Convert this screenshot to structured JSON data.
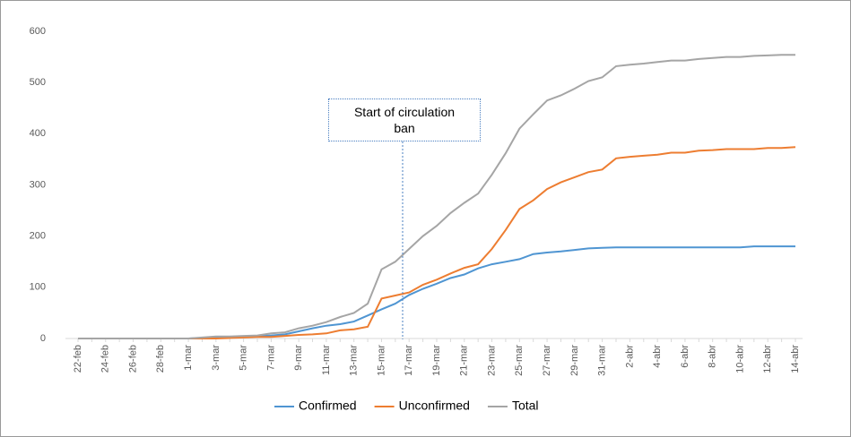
{
  "chart_data": {
    "type": "line",
    "categories": [
      "22-feb",
      null,
      "24-feb",
      null,
      "26-feb",
      null,
      "28-feb",
      null,
      "1-mar",
      null,
      "3-mar",
      null,
      "5-mar",
      null,
      "7-mar",
      null,
      "9-mar",
      null,
      "11-mar",
      null,
      "13-mar",
      null,
      "15-mar",
      null,
      "17-mar",
      null,
      "19-mar",
      null,
      "21-mar",
      null,
      "23-mar",
      null,
      "25-mar",
      null,
      "27-mar",
      null,
      "29-mar",
      null,
      "31-mar",
      null,
      "2-abr",
      null,
      "4-abr",
      null,
      "6-abr",
      null,
      "8-abr",
      null,
      "10-abr",
      null,
      "12-abr",
      null,
      "14-abr"
    ],
    "series": [
      {
        "name": "Confirmed",
        "color": "#4f95d2",
        "values": [
          0,
          0,
          0,
          0,
          0,
          0,
          0,
          0,
          0,
          1,
          2,
          3,
          4,
          5,
          6,
          8,
          14,
          20,
          25,
          28,
          33,
          45,
          57,
          68,
          85,
          97,
          107,
          118,
          125,
          137,
          145,
          150,
          155,
          165,
          168,
          170,
          173,
          176,
          177,
          178,
          178,
          178,
          178,
          178,
          178,
          178,
          178,
          178,
          178,
          180,
          180,
          180,
          180
        ]
      },
      {
        "name": "Unconfirmed",
        "color": "#ed7d31",
        "values": [
          0,
          0,
          0,
          0,
          0,
          0,
          0,
          0,
          0,
          0,
          0,
          1,
          2,
          3,
          3,
          5,
          7,
          8,
          10,
          16,
          18,
          23,
          78,
          84,
          90,
          105,
          115,
          127,
          138,
          145,
          175,
          212,
          253,
          270,
          292,
          305,
          315,
          325,
          330,
          352,
          355,
          357,
          359,
          363,
          363,
          367,
          368,
          370,
          370,
          370,
          372,
          372,
          374
        ]
      },
      {
        "name": "Total",
        "color": "#a5a5a5",
        "values": [
          0,
          0,
          0,
          0,
          0,
          0,
          0,
          0,
          0,
          2,
          4,
          4,
          5,
          6,
          10,
          12,
          20,
          25,
          32,
          42,
          50,
          68,
          135,
          150,
          175,
          200,
          220,
          245,
          265,
          283,
          320,
          362,
          410,
          438,
          465,
          475,
          488,
          503,
          510,
          532,
          535,
          537,
          540,
          543,
          543,
          546,
          548,
          550,
          550,
          552,
          553,
          554,
          554
        ]
      }
    ],
    "annotation": "Start of circulation ban",
    "ylim": [
      0,
      600
    ],
    "yticks": [
      0,
      100,
      200,
      300,
      400,
      500,
      600
    ],
    "grid": false,
    "legend": "bottom"
  }
}
